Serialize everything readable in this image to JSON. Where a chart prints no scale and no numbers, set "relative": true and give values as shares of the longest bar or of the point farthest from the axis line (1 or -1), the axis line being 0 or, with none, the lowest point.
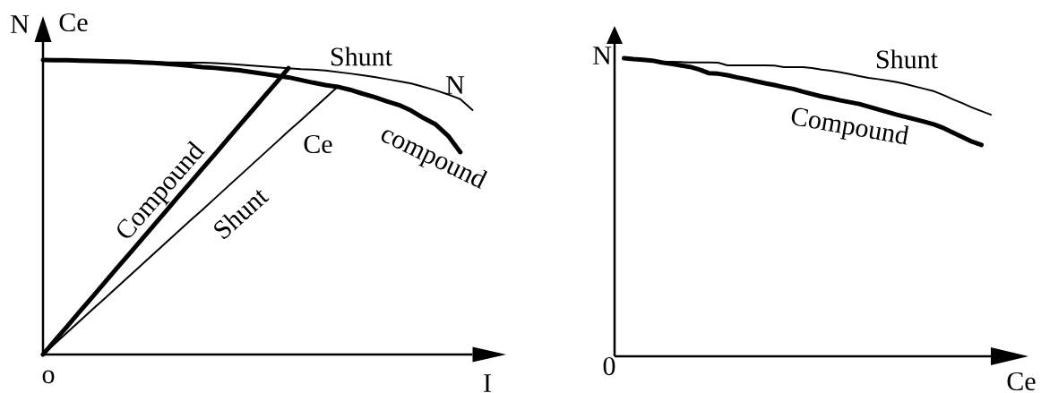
{
  "chart_data": [
    {
      "type": "line",
      "relative": true,
      "xlabel": "I",
      "ylabel": "N",
      "categories": [
        null,
        null,
        null,
        null,
        null,
        null,
        null,
        null,
        null,
        null,
        null,
        null,
        null,
        null,
        null,
        null,
        null,
        null,
        null,
        null,
        null,
        null,
        null,
        null,
        null,
        null,
        null,
        null,
        null,
        null,
        null,
        null,
        null,
        null,
        null,
        null
      ],
      "series": [
        {
          "name": "Shunt",
          "color": "#000000",
          "values": [
            1,
            0.999,
            0.999,
            0.998,
            0.997,
            0.996,
            0.995,
            0.994,
            0.994,
            0.993,
            0.992,
            0.992,
            0.991,
            0.991,
            0.989,
            0.987,
            0.984,
            0.981,
            0.978,
            0.975,
            0.972,
            0.969,
            0.967,
            0.964,
            0.959,
            0.954,
            0.948,
            0.942,
            0.935,
            0.928,
            0.92,
            0.909,
            0.897,
            0.883,
            0.867,
            0.83
          ]
        },
        {
          "name": "compound",
          "color": "#000000",
          "values": [
            1,
            0.999,
            0.999,
            0.998,
            0.997,
            0.996,
            0.995,
            0.994,
            0.992,
            0.99,
            0.987,
            0.984,
            0.98,
            0.976,
            0.973,
            0.969,
            0.965,
            0.959,
            0.953,
            0.947,
            0.941,
            0.932,
            0.923,
            0.915,
            0.909,
            0.899,
            0.886,
            0.874,
            0.86,
            0.847,
            0.828,
            0.803,
            0.781,
            0.743,
            0.687,
            null
          ]
        },
        {
          "name": "Compound",
          "color": "#000000",
          "values": [
            0,
            0.049,
            0.097,
            0.146,
            0.194,
            0.243,
            0.292,
            0.34,
            0.389,
            0.437,
            0.486,
            0.535,
            0.583,
            0.632,
            0.68,
            0.729,
            0.778,
            0.826,
            0.875,
            0.923,
            0.972,
            null,
            null,
            null,
            null,
            null,
            null,
            null,
            null,
            null,
            null,
            null,
            null,
            null,
            null,
            null
          ]
        },
        {
          "name": "Shunt",
          "color": "#000000",
          "values": [
            0,
            0.038,
            0.076,
            0.114,
            0.152,
            0.189,
            0.227,
            0.265,
            0.303,
            0.341,
            0.379,
            0.417,
            0.455,
            0.492,
            0.53,
            0.568,
            0.606,
            0.644,
            0.682,
            0.72,
            0.758,
            0.795,
            0.833,
            0.871,
            0.909,
            null,
            null,
            null,
            null,
            null,
            null,
            null,
            null,
            null,
            null,
            null
          ]
        }
      ],
      "annotations": [
        "Ce",
        "o",
        "N",
        "Ce"
      ]
    },
    {
      "type": "line",
      "relative": true,
      "xlabel": "Ce",
      "ylabel": "N",
      "categories": [
        null,
        null,
        null,
        null,
        null,
        null,
        null,
        null,
        null,
        null,
        null,
        null,
        null,
        null,
        null,
        null,
        null,
        null,
        null,
        null,
        null,
        null,
        null,
        null,
        null,
        null,
        null,
        null,
        null,
        null,
        null,
        null,
        null,
        null,
        null,
        null,
        null,
        null,
        null,
        null,
        null
      ],
      "series": [
        {
          "name": "Shunt",
          "color": "#000000",
          "values": [
            null,
            1,
            0.996,
            0.993,
            0.989,
            0.986,
            0.985,
            0.984,
            0.983,
            0.983,
            0.983,
            0.982,
            0.973,
            0.973,
            0.973,
            0.973,
            0.973,
            0.972,
            0.967,
            0.967,
            0.967,
            0.964,
            0.959,
            0.955,
            0.95,
            0.944,
            0.937,
            0.931,
            0.927,
            0.922,
            0.917,
            0.91,
            0.902,
            0.894,
            0.886,
            0.873,
            0.859,
            0.846,
            0.832,
            0.82,
            0.808
          ]
        },
        {
          "name": "Compound",
          "color": "#000000",
          "values": [
            null,
            0.997,
            0.994,
            0.992,
            0.989,
            0.983,
            0.978,
            0.973,
            0.968,
            0.959,
            0.947,
            0.945,
            0.94,
            0.933,
            0.927,
            0.92,
            0.913,
            0.907,
            0.9,
            0.894,
            0.885,
            0.877,
            0.869,
            0.863,
            0.856,
            0.85,
            0.844,
            0.835,
            0.826,
            0.817,
            0.808,
            0.8,
            0.792,
            0.784,
            0.775,
            0.763,
            0.748,
            0.733,
            0.718,
            0.707,
            null
          ]
        }
      ],
      "annotations": [
        "0"
      ]
    }
  ]
}
